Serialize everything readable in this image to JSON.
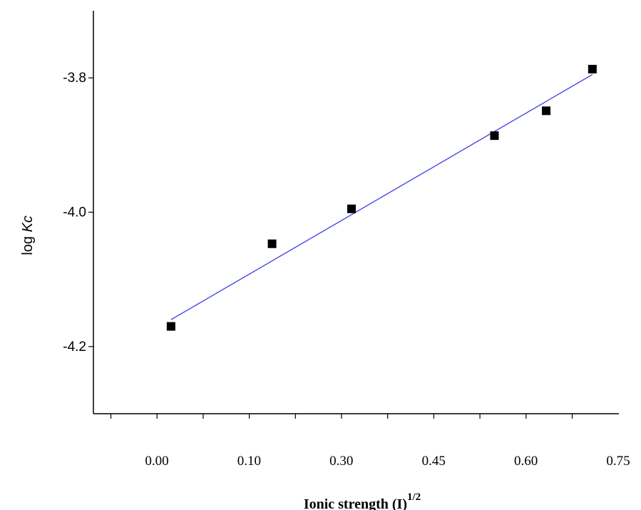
{
  "chart_data": {
    "type": "scatter",
    "ylabel": {
      "main": "log ",
      "italic": "Kc"
    },
    "xlabel": {
      "main": "Ionic strength  (I)",
      "sup": "1/2"
    },
    "x_tick_labels": [
      "0.00",
      "0.10",
      "0.30",
      "0.45",
      "0.60",
      "0.75"
    ],
    "y_ticks": [
      -3.8,
      -4.0,
      -4.2
    ],
    "y_tick_labels": [
      "-3.8",
      "-4.0",
      "-4.2"
    ],
    "ylim": [
      -4.3,
      -3.7
    ],
    "x_minor_tick_count": 11,
    "series": [
      {
        "x": [
          0.023,
          0.187,
          0.316,
          0.548,
          0.632,
          0.707
        ],
        "y": [
          -4.17,
          -4.047,
          -3.995,
          -3.886,
          -3.849,
          -3.787
        ]
      }
    ],
    "fit_line": {
      "x": [
        0.023,
        0.707
      ],
      "y": [
        -4.16,
        -3.795
      ]
    },
    "colors": {
      "points": "#000000",
      "fit_line": "#4a4ae8"
    }
  }
}
